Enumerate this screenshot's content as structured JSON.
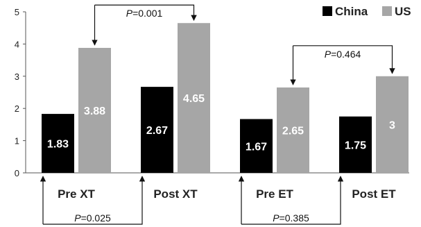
{
  "chart_data": {
    "type": "bar",
    "categories": [
      "Pre XT",
      "Post XT",
      "Pre ET",
      "Post ET"
    ],
    "series": [
      {
        "name": "China",
        "values": [
          1.83,
          2.67,
          1.67,
          1.75
        ],
        "labels": [
          "1.83",
          "2.67",
          "1.67",
          "1.75"
        ],
        "color": "#000000"
      },
      {
        "name": "US",
        "values": [
          3.88,
          4.65,
          2.65,
          3.0
        ],
        "labels": [
          "3.88",
          "4.65",
          "2.65",
          "3"
        ],
        "color": "#a6a6a6"
      }
    ],
    "ylim": [
      0,
      5
    ],
    "yticks": [
      "0",
      "1",
      "2",
      "3",
      "4",
      "5"
    ],
    "legend_position": "top-right",
    "annotations": [
      {
        "text": "=0.001",
        "prefix": "P",
        "from": [
          0,
          "US"
        ],
        "to": [
          1,
          "US"
        ],
        "placement": "above"
      },
      {
        "text": "=0.464",
        "prefix": "P",
        "from": [
          2,
          "US"
        ],
        "to": [
          3,
          "US"
        ],
        "placement": "above"
      },
      {
        "text": "=0.025",
        "prefix": "P",
        "from": [
          0,
          "China"
        ],
        "to": [
          1,
          "China"
        ],
        "placement": "below"
      },
      {
        "text": "=0.385",
        "prefix": "P",
        "from": [
          2,
          "China"
        ],
        "to": [
          3,
          "China"
        ],
        "placement": "below"
      }
    ]
  }
}
